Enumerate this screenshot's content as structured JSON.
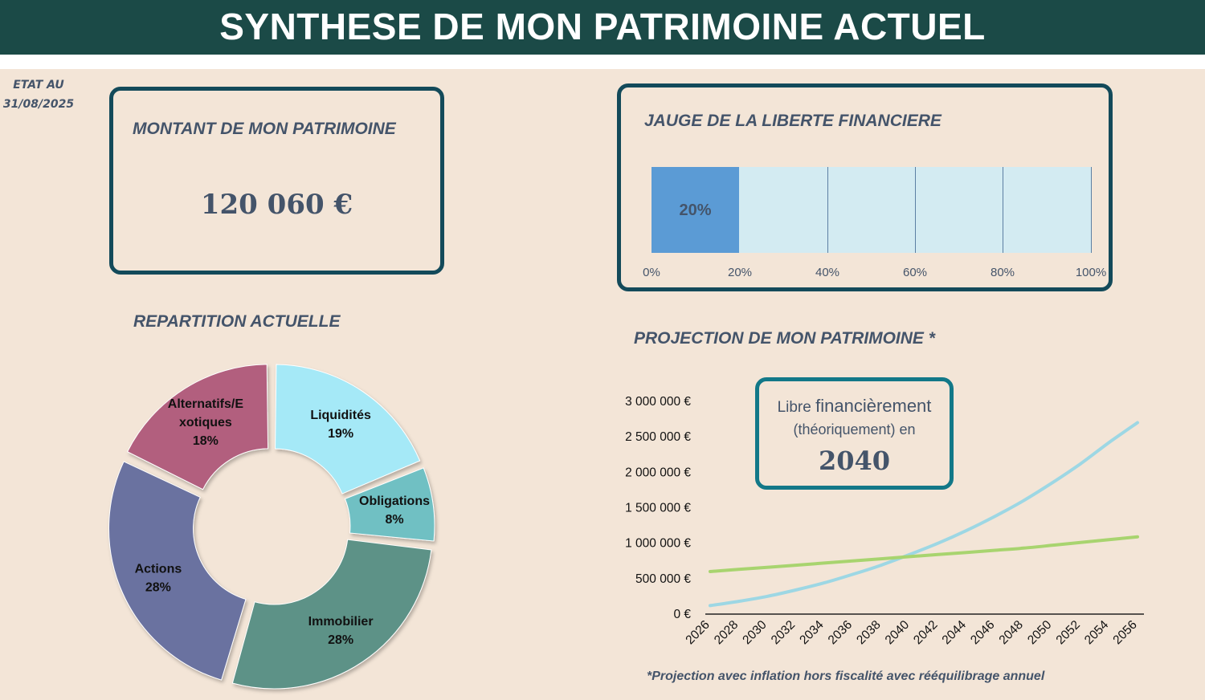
{
  "header": {
    "title": "SYNTHESE DE MON PATRIMOINE ACTUEL"
  },
  "etat": {
    "line1": "ETAT AU",
    "line2": "31/08/2025"
  },
  "patrimoine": {
    "title": "MONTANT DE MON PATRIMOINE",
    "amount": "120 060 €"
  },
  "jauge": {
    "title": "JAUGE DE LA LIBERTE FINANCIERE",
    "value_label": "20%",
    "value_fraction": 0.2,
    "ticks": [
      "0%",
      "20%",
      "40%",
      "60%",
      "80%",
      "100%"
    ]
  },
  "repartition": {
    "title": "REPARTITION ACTUELLE"
  },
  "projection": {
    "title": "PROJECTION DE MON PATRIMOINE *",
    "libre_line1_a": "Libre",
    "libre_line1_b": "financièrement",
    "libre_line2": "(théoriquement) en",
    "libre_year": "2040",
    "footnote": "*Projection avec inflation hors fiscalité avec rééquilibrage annuel"
  },
  "colors": {
    "header_bg": "#1b4a47",
    "background": "#f3e5d7",
    "card_border": "#134a5a",
    "gauge_fill": "#5b9bd5",
    "gauge_bg": "#d3ebf2"
  },
  "chart_data": [
    {
      "type": "pie",
      "subtype": "donut",
      "categories": [
        "Liquidités",
        "Obligations",
        "Immobilier",
        "Actions",
        "Alternatifs/Exotiques"
      ],
      "label_lines": [
        [
          "Liquidités"
        ],
        [
          "Obligations"
        ],
        [
          "Immobilier"
        ],
        [
          "Actions"
        ],
        [
          "Alternatifs/E",
          "xotiques"
        ]
      ],
      "values": [
        19,
        8,
        28,
        28,
        18
      ],
      "value_labels": [
        "19%",
        "8%",
        "28%",
        "28%",
        "18%"
      ],
      "colors": [
        "#a5e9f7",
        "#6fc0c3",
        "#5d9287",
        "#6b72a0",
        "#b25e7e"
      ]
    },
    {
      "type": "line",
      "x": [
        2026,
        2028,
        2030,
        2032,
        2034,
        2036,
        2038,
        2040,
        2042,
        2044,
        2046,
        2048,
        2050,
        2052,
        2054,
        2056
      ],
      "series": [
        {
          "color": "#9dd7e4",
          "values": [
            120000,
            180000,
            250000,
            340000,
            440000,
            560000,
            690000,
            840000,
            1000000,
            1180000,
            1380000,
            1600000,
            1850000,
            2120000,
            2420000,
            2700000
          ]
        },
        {
          "color": "#a8d46f",
          "values": [
            600000,
            630000,
            660000,
            690000,
            720000,
            750000,
            780000,
            810000,
            840000,
            870000,
            900000,
            930000,
            970000,
            1010000,
            1050000,
            1090000
          ]
        }
      ],
      "yticks": [
        "0 €",
        "500 000 €",
        "1 000 000 €",
        "1 500 000 €",
        "2 000 000 €",
        "2 500 000 €",
        "3 000 000 €"
      ],
      "ylim": [
        0,
        3000000
      ]
    }
  ]
}
